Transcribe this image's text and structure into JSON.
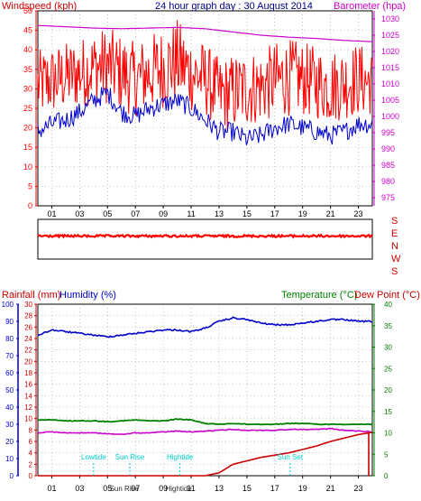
{
  "colors": {
    "wind": "#ff0000",
    "gust": "#ff0000",
    "avg_wind": "#0000cc",
    "barometer": "#cc00cc",
    "rain": "#cc0000",
    "humidity": "#0000cc",
    "temperature": "#008000",
    "dewpoint": "#cc00cc",
    "annotation": "#00cccc",
    "title": "#000088",
    "frame": "#000000",
    "grid": "#888888"
  },
  "top_panel": {
    "title": "24 hour graph day : 30 August 2014",
    "left_label": "Windspeed (kph)",
    "right_label": "Barometer (hpa)"
  },
  "direction_panel": {
    "labels": [
      "S",
      "E",
      "N",
      "W",
      "S"
    ]
  },
  "bottom_panel": {
    "left_label_1": "Rainfall (mm)",
    "left_label_2": "Humidity (%)",
    "right_label_1": "Temperature (°C)",
    "right_label_2": "Dew Point (°C)",
    "events": [
      {
        "label": "Lowtide",
        "hour": 4.0
      },
      {
        "label": "Sun Rise",
        "hour": 6.6
      },
      {
        "label": "Hightide",
        "hour": 10.2
      },
      {
        "label": "Sun Set",
        "hour": 18.1
      }
    ],
    "bottom_tick_overlay": [
      {
        "label": "Sun Rise",
        "hour": 6.2
      },
      {
        "label": "Hightide",
        "hour": 10.1
      }
    ]
  },
  "chart_data": [
    {
      "type": "line",
      "title": "24 hour graph day : 30 August 2014",
      "x_ticks": [
        "01",
        "03",
        "05",
        "07",
        "09",
        "11",
        "13",
        "15",
        "17",
        "19",
        "21",
        "23"
      ],
      "x_tick_hours": [
        1,
        3,
        5,
        7,
        9,
        11,
        13,
        15,
        17,
        19,
        21,
        23
      ],
      "y_left": {
        "label": "Windspeed (kph)",
        "ticks": [
          0,
          5,
          10,
          15,
          20,
          25,
          30,
          35,
          40,
          45,
          50
        ],
        "range": [
          0,
          50
        ]
      },
      "y_right": {
        "label": "Barometer (hpa)",
        "ticks": [
          975,
          980,
          985,
          990,
          995,
          1000,
          1005,
          1010,
          1015,
          1020,
          1025,
          1030
        ],
        "range": [
          972.5,
          1032.5
        ]
      },
      "series": [
        {
          "name": "Windspeed",
          "axis": "left",
          "hours": [
            0,
            1,
            2,
            3,
            4,
            5,
            6,
            7,
            8,
            9,
            10,
            11,
            12,
            13,
            14,
            15,
            16,
            17,
            18,
            19,
            20,
            21,
            22,
            23,
            24
          ],
          "values": [
            30,
            31,
            32,
            33,
            34,
            35,
            33,
            32,
            33,
            34,
            35,
            33,
            32,
            26,
            27,
            27,
            28,
            29,
            30,
            30,
            29,
            28,
            29,
            30,
            30
          ],
          "gust_high": [
            40,
            41,
            42,
            43,
            45,
            46,
            44,
            42,
            44,
            46,
            48,
            44,
            42,
            38,
            39,
            40,
            40,
            42,
            43,
            42,
            41,
            40,
            41,
            42,
            40
          ],
          "gust_low": [
            22,
            23,
            24,
            25,
            26,
            26,
            24,
            23,
            24,
            25,
            26,
            24,
            23,
            19,
            19,
            20,
            21,
            22,
            23,
            23,
            22,
            21,
            22,
            23,
            23
          ]
        },
        {
          "name": "Average windspeed",
          "axis": "left",
          "hours": [
            0,
            1,
            2,
            3,
            4,
            5,
            6,
            7,
            8,
            9,
            10,
            11,
            12,
            13,
            14,
            15,
            16,
            17,
            18,
            19,
            20,
            21,
            22,
            23,
            24
          ],
          "values": [
            19,
            21,
            22,
            24,
            27,
            29,
            24,
            23,
            25,
            26,
            27,
            25,
            22,
            19,
            19,
            17,
            18,
            20,
            21,
            20,
            19,
            18,
            19,
            21,
            21
          ]
        },
        {
          "name": "Barometer",
          "axis": "right",
          "hours": [
            0,
            2,
            4,
            6,
            8,
            10,
            12,
            14,
            16,
            18,
            20,
            22,
            24
          ],
          "values": [
            1028,
            1027.6,
            1027.2,
            1027.0,
            1027.2,
            1027.4,
            1027.0,
            1026.0,
            1025.0,
            1024.4,
            1024.0,
            1023.4,
            1023.0
          ]
        }
      ]
    },
    {
      "type": "scatter",
      "x_ticks": [
        "01",
        "03",
        "05",
        "07",
        "09",
        "11",
        "13",
        "15",
        "17",
        "19",
        "21",
        "23"
      ],
      "y_labels": [
        "S",
        "E",
        "N",
        "W",
        "S"
      ],
      "series": [
        {
          "name": "Wind direction",
          "hours": [
            0,
            2,
            4,
            6,
            8,
            10,
            12,
            14,
            16,
            18,
            20,
            22,
            24
          ],
          "values": [
            "S",
            "S",
            "S",
            "S",
            "S",
            "S",
            "S",
            "S",
            "S",
            "S",
            "S",
            "S",
            "S"
          ]
        }
      ]
    },
    {
      "type": "line",
      "x_ticks": [
        "01",
        "03",
        "05",
        "07",
        "09",
        "11",
        "13",
        "15",
        "17",
        "19",
        "21",
        "23"
      ],
      "x_tick_hours": [
        1,
        3,
        5,
        7,
        9,
        11,
        13,
        15,
        17,
        19,
        21,
        23
      ],
      "y_left_outer": {
        "label": "Humidity (%)",
        "ticks": [
          0,
          10,
          20,
          30,
          40,
          50,
          60,
          70,
          80,
          90,
          100
        ],
        "range": [
          0,
          100
        ]
      },
      "y_left_inner": {
        "label": "Rainfall (mm)",
        "ticks": [
          0,
          2,
          4,
          6,
          8,
          10,
          12,
          14,
          16,
          18,
          20,
          22,
          24,
          26,
          28,
          30
        ],
        "range": [
          0,
          30
        ]
      },
      "y_right": {
        "label": "Temperature (°C)",
        "ticks": [
          0,
          5,
          10,
          15,
          20,
          25,
          30,
          35,
          40
        ],
        "range": [
          0,
          40
        ]
      },
      "series": [
        {
          "name": "Humidity",
          "axis": "left_outer",
          "hours": [
            0,
            1,
            2,
            3,
            4,
            5,
            6,
            7,
            8,
            9,
            10,
            11,
            12,
            13,
            14,
            15,
            16,
            17,
            18,
            19,
            20,
            21,
            22,
            23,
            24
          ],
          "values": [
            82,
            85,
            84,
            83,
            82,
            81,
            82,
            83,
            84,
            85,
            85,
            84,
            86,
            90,
            92,
            91,
            89,
            88,
            88,
            89,
            90,
            91,
            91,
            90,
            90
          ]
        },
        {
          "name": "Rainfall",
          "axis": "left_inner",
          "hours": [
            0,
            11,
            12,
            13,
            14,
            15,
            16,
            17,
            18,
            19,
            20,
            21,
            22,
            23,
            24
          ],
          "values": [
            0,
            0,
            0,
            0.5,
            2.0,
            2.6,
            3.2,
            3.6,
            4.0,
            4.6,
            5.2,
            6.0,
            6.6,
            7.2,
            7.6
          ]
        },
        {
          "name": "Temperature",
          "axis": "right",
          "hours": [
            0,
            1,
            2,
            3,
            4,
            5,
            6,
            7,
            8,
            9,
            10,
            11,
            12,
            13,
            14,
            15,
            16,
            17,
            18,
            19,
            20,
            21,
            22,
            23,
            24
          ],
          "values": [
            13.0,
            13.0,
            12.8,
            12.8,
            12.8,
            12.6,
            12.8,
            13.0,
            12.8,
            12.8,
            13.2,
            13.0,
            12.2,
            12.0,
            12.2,
            12.0,
            12.0,
            12.0,
            12.2,
            12.2,
            12.0,
            12.0,
            12.0,
            12.0,
            12.0
          ]
        },
        {
          "name": "Dew Point",
          "axis": "right",
          "hours": [
            0,
            1,
            2,
            3,
            4,
            5,
            6,
            7,
            8,
            9,
            10,
            11,
            12,
            13,
            14,
            15,
            16,
            17,
            18,
            19,
            20,
            21,
            22,
            23,
            24
          ],
          "values": [
            10.0,
            10.2,
            10.0,
            10.0,
            10.0,
            9.8,
            9.6,
            10.0,
            10.0,
            10.2,
            10.4,
            10.2,
            10.4,
            10.6,
            10.8,
            10.6,
            10.6,
            10.6,
            10.8,
            10.8,
            10.8,
            11.0,
            10.6,
            10.4,
            10.2
          ]
        }
      ]
    }
  ]
}
